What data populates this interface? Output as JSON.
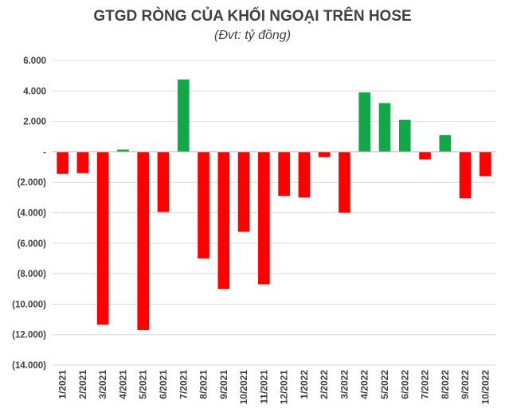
{
  "chart_data": {
    "type": "bar",
    "title": "GTGD RÒNG CỦA KHỐI NGOẠI TRÊN HOSE",
    "subtitle": "(Đvt: tỷ đồng)",
    "categories": [
      "1/2021",
      "2/2021",
      "3/2021",
      "4/2021",
      "5/2021",
      "6/2021",
      "7/2021",
      "8/2021",
      "9/2021",
      "10/2021",
      "11/2021",
      "12/2021",
      "1/2022",
      "2/2022",
      "3/2022",
      "4/2022",
      "5/2022",
      "6/2022",
      "7/2022",
      "8/2022",
      "9/2022",
      "10/2022"
    ],
    "values": [
      -1450,
      -1400,
      -11350,
      150,
      -11700,
      -3950,
      4750,
      -7000,
      -9000,
      -5250,
      -8700,
      -2900,
      -3000,
      -350,
      -4000,
      3900,
      3200,
      2100,
      -500,
      1100,
      -3050,
      -1600
    ],
    "ylim": [
      -14000,
      6000
    ],
    "yticks": [
      6000,
      4000,
      2000,
      0,
      -2000,
      -4000,
      -6000,
      -8000,
      -10000,
      -12000,
      -14000
    ],
    "ytick_labels": [
      "6.000",
      "4.000",
      "2.000",
      "-",
      "(2.000)",
      "(4.000)",
      "(6.000)",
      "(8.000)",
      "(10.000)",
      "(12.000)",
      "(14.000)"
    ],
    "grid": true,
    "colors": {
      "positive": "#12a84a",
      "negative": "#ff0000",
      "grid": "#d9d9d9",
      "axis": "#bfbfbf",
      "text": "#404040"
    }
  }
}
